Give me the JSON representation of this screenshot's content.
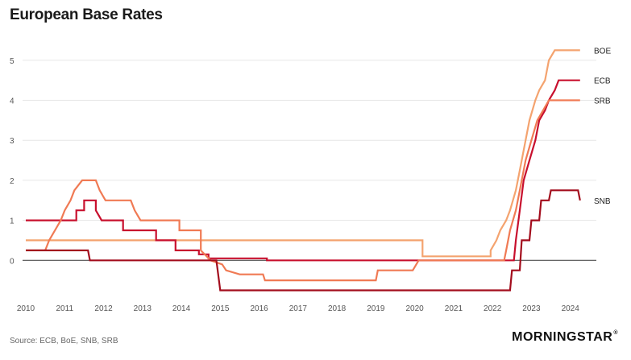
{
  "title": "European Base Rates",
  "source": "Source: ECB, BoE, SNB, SRB",
  "logo": "MORNINGSTAR",
  "logo_mark": "®",
  "chart_data": {
    "type": "line",
    "title": "European Base Rates",
    "xlabel": "",
    "ylabel": "",
    "xlim": [
      2010,
      2024.4
    ],
    "ylim": [
      -0.9,
      5.5
    ],
    "xticks": [
      "2010",
      "2011",
      "2012",
      "2013",
      "2014",
      "2015",
      "2016",
      "2017",
      "2018",
      "2019",
      "2020",
      "2021",
      "2022",
      "2023",
      "2024"
    ],
    "yticks": [
      "5",
      "4",
      "3",
      "2",
      "1",
      "0"
    ],
    "grid": true,
    "legend": "labels at line ends (right)",
    "series": [
      {
        "name": "BOE",
        "color": "#f4a36f",
        "points": [
          [
            2010,
            0.5
          ],
          [
            2020.2,
            0.5
          ],
          [
            2020.2,
            0.1
          ],
          [
            2021.95,
            0.1
          ],
          [
            2021.95,
            0.25
          ],
          [
            2022.1,
            0.5
          ],
          [
            2022.2,
            0.75
          ],
          [
            2022.35,
            1.0
          ],
          [
            2022.45,
            1.25
          ],
          [
            2022.6,
            1.75
          ],
          [
            2022.7,
            2.25
          ],
          [
            2022.85,
            3.0
          ],
          [
            2022.95,
            3.5
          ],
          [
            2023.1,
            4.0
          ],
          [
            2023.2,
            4.25
          ],
          [
            2023.35,
            4.5
          ],
          [
            2023.45,
            5.0
          ],
          [
            2023.6,
            5.25
          ],
          [
            2024.25,
            5.25
          ]
        ]
      },
      {
        "name": "ECB",
        "color": "#c8102e",
        "points": [
          [
            2010,
            1.0
          ],
          [
            2011.3,
            1.0
          ],
          [
            2011.3,
            1.25
          ],
          [
            2011.5,
            1.25
          ],
          [
            2011.5,
            1.5
          ],
          [
            2011.8,
            1.5
          ],
          [
            2011.8,
            1.25
          ],
          [
            2011.95,
            1.0
          ],
          [
            2012.5,
            1.0
          ],
          [
            2012.5,
            0.75
          ],
          [
            2013.35,
            0.75
          ],
          [
            2013.35,
            0.5
          ],
          [
            2013.85,
            0.5
          ],
          [
            2013.85,
            0.25
          ],
          [
            2014.45,
            0.25
          ],
          [
            2014.45,
            0.15
          ],
          [
            2014.7,
            0.15
          ],
          [
            2014.7,
            0.05
          ],
          [
            2016.2,
            0.05
          ],
          [
            2016.2,
            0.0
          ],
          [
            2022.55,
            0.0
          ],
          [
            2022.6,
            0.5
          ],
          [
            2022.7,
            1.25
          ],
          [
            2022.8,
            2.0
          ],
          [
            2022.95,
            2.5
          ],
          [
            2023.1,
            3.0
          ],
          [
            2023.2,
            3.5
          ],
          [
            2023.35,
            3.75
          ],
          [
            2023.45,
            4.0
          ],
          [
            2023.6,
            4.25
          ],
          [
            2023.7,
            4.5
          ],
          [
            2024.25,
            4.5
          ]
        ]
      },
      {
        "name": "SRB",
        "color": "#f07a54",
        "points": [
          [
            2010,
            0.25
          ],
          [
            2010.5,
            0.25
          ],
          [
            2010.6,
            0.5
          ],
          [
            2010.75,
            0.75
          ],
          [
            2010.9,
            1.0
          ],
          [
            2011.0,
            1.25
          ],
          [
            2011.15,
            1.5
          ],
          [
            2011.25,
            1.75
          ],
          [
            2011.45,
            2.0
          ],
          [
            2011.8,
            2.0
          ],
          [
            2011.9,
            1.75
          ],
          [
            2012.05,
            1.5
          ],
          [
            2012.7,
            1.5
          ],
          [
            2012.8,
            1.25
          ],
          [
            2012.95,
            1.0
          ],
          [
            2013.95,
            1.0
          ],
          [
            2013.95,
            0.75
          ],
          [
            2014.5,
            0.75
          ],
          [
            2014.5,
            0.25
          ],
          [
            2014.75,
            0.0
          ],
          [
            2015.05,
            -0.1
          ],
          [
            2015.15,
            -0.25
          ],
          [
            2015.5,
            -0.35
          ],
          [
            2016.1,
            -0.35
          ],
          [
            2016.15,
            -0.5
          ],
          [
            2019.0,
            -0.5
          ],
          [
            2019.05,
            -0.25
          ],
          [
            2019.95,
            -0.25
          ],
          [
            2020.1,
            0.0
          ],
          [
            2022.3,
            0.0
          ],
          [
            2022.35,
            0.25
          ],
          [
            2022.45,
            0.75
          ],
          [
            2022.6,
            1.25
          ],
          [
            2022.7,
            1.75
          ],
          [
            2022.85,
            2.5
          ],
          [
            2023.0,
            3.0
          ],
          [
            2023.15,
            3.5
          ],
          [
            2023.3,
            3.75
          ],
          [
            2023.45,
            4.0
          ],
          [
            2024.25,
            4.0
          ]
        ]
      },
      {
        "name": "SNB",
        "color": "#a30d1d",
        "points": [
          [
            2010,
            0.25
          ],
          [
            2011.6,
            0.25
          ],
          [
            2011.65,
            0.0
          ],
          [
            2014.9,
            0.0
          ],
          [
            2015.0,
            -0.75
          ],
          [
            2022.45,
            -0.75
          ],
          [
            2022.5,
            -0.25
          ],
          [
            2022.7,
            -0.25
          ],
          [
            2022.75,
            0.5
          ],
          [
            2022.95,
            0.5
          ],
          [
            2023.0,
            1.0
          ],
          [
            2023.2,
            1.0
          ],
          [
            2023.25,
            1.5
          ],
          [
            2023.45,
            1.5
          ],
          [
            2023.5,
            1.75
          ],
          [
            2024.2,
            1.75
          ],
          [
            2024.25,
            1.5
          ]
        ]
      }
    ]
  }
}
